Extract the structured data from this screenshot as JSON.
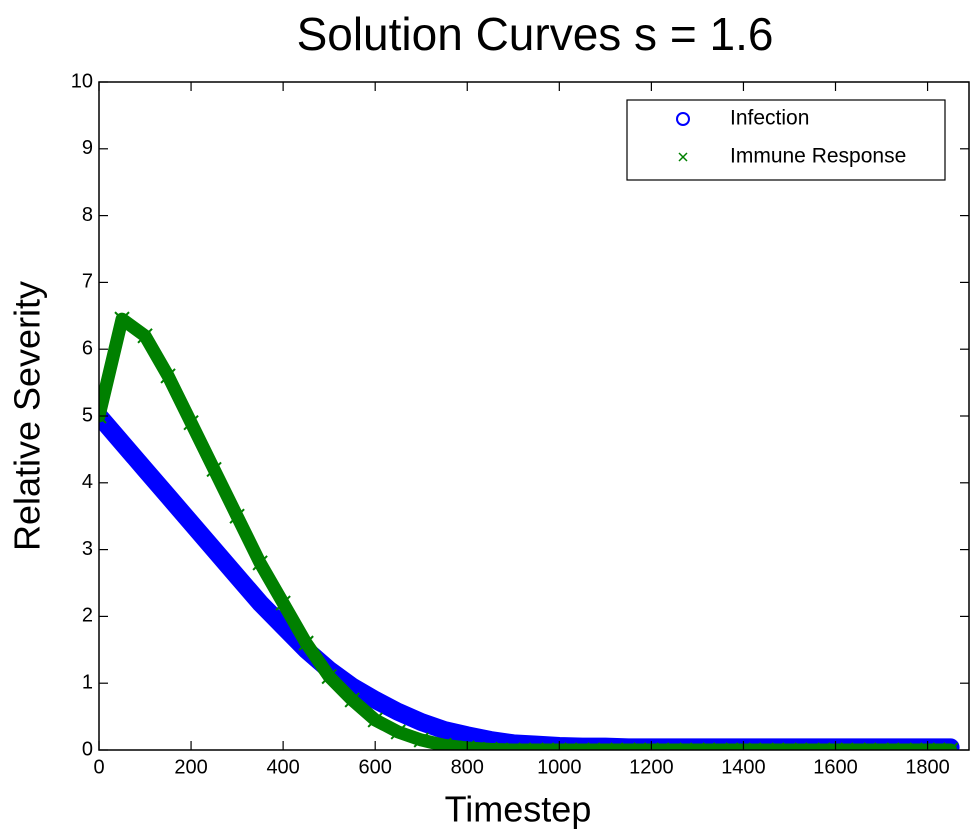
{
  "chart_data": {
    "type": "line",
    "title": "Solution Curves s = 1.6",
    "xlabel": "Timestep",
    "ylabel": "Relative Severity",
    "x": [
      0,
      50,
      100,
      150,
      200,
      250,
      300,
      350,
      400,
      450,
      500,
      550,
      600,
      650,
      700,
      750,
      800,
      850,
      900,
      950,
      1000,
      1050,
      1100,
      1150,
      1200,
      1250,
      1300,
      1350,
      1400,
      1450,
      1500,
      1550,
      1600,
      1650,
      1700,
      1750,
      1800,
      1850
    ],
    "series": [
      {
        "name": "Infection",
        "color": "#0000ff",
        "marker": "o",
        "values": [
          5.0,
          4.6,
          4.2,
          3.8,
          3.4,
          3.0,
          2.6,
          2.2,
          1.85,
          1.5,
          1.2,
          0.95,
          0.75,
          0.57,
          0.42,
          0.3,
          0.22,
          0.15,
          0.1,
          0.08,
          0.06,
          0.05,
          0.05,
          0.04,
          0.04,
          0.04,
          0.04,
          0.04,
          0.04,
          0.04,
          0.04,
          0.04,
          0.04,
          0.04,
          0.04,
          0.04,
          0.04,
          0.04
        ]
      },
      {
        "name": "Immune Response",
        "color": "#008000",
        "marker": "x",
        "values": [
          5.0,
          6.45,
          6.2,
          5.6,
          4.9,
          4.2,
          3.5,
          2.8,
          2.2,
          1.6,
          1.1,
          0.75,
          0.45,
          0.27,
          0.15,
          0.07,
          0.03,
          0.01,
          0,
          0,
          0,
          0,
          0,
          0,
          0,
          0,
          0,
          0,
          0,
          0,
          0,
          0,
          0,
          0,
          0,
          0,
          0,
          0
        ]
      }
    ],
    "xlim": [
      0,
      1890
    ],
    "ylim": [
      0,
      10
    ],
    "xticks": [
      0,
      200,
      400,
      600,
      800,
      1000,
      1200,
      1400,
      1600,
      1800
    ],
    "yticks": [
      0,
      1,
      2,
      3,
      4,
      5,
      6,
      7,
      8,
      9,
      10
    ],
    "legend": "northeast"
  }
}
